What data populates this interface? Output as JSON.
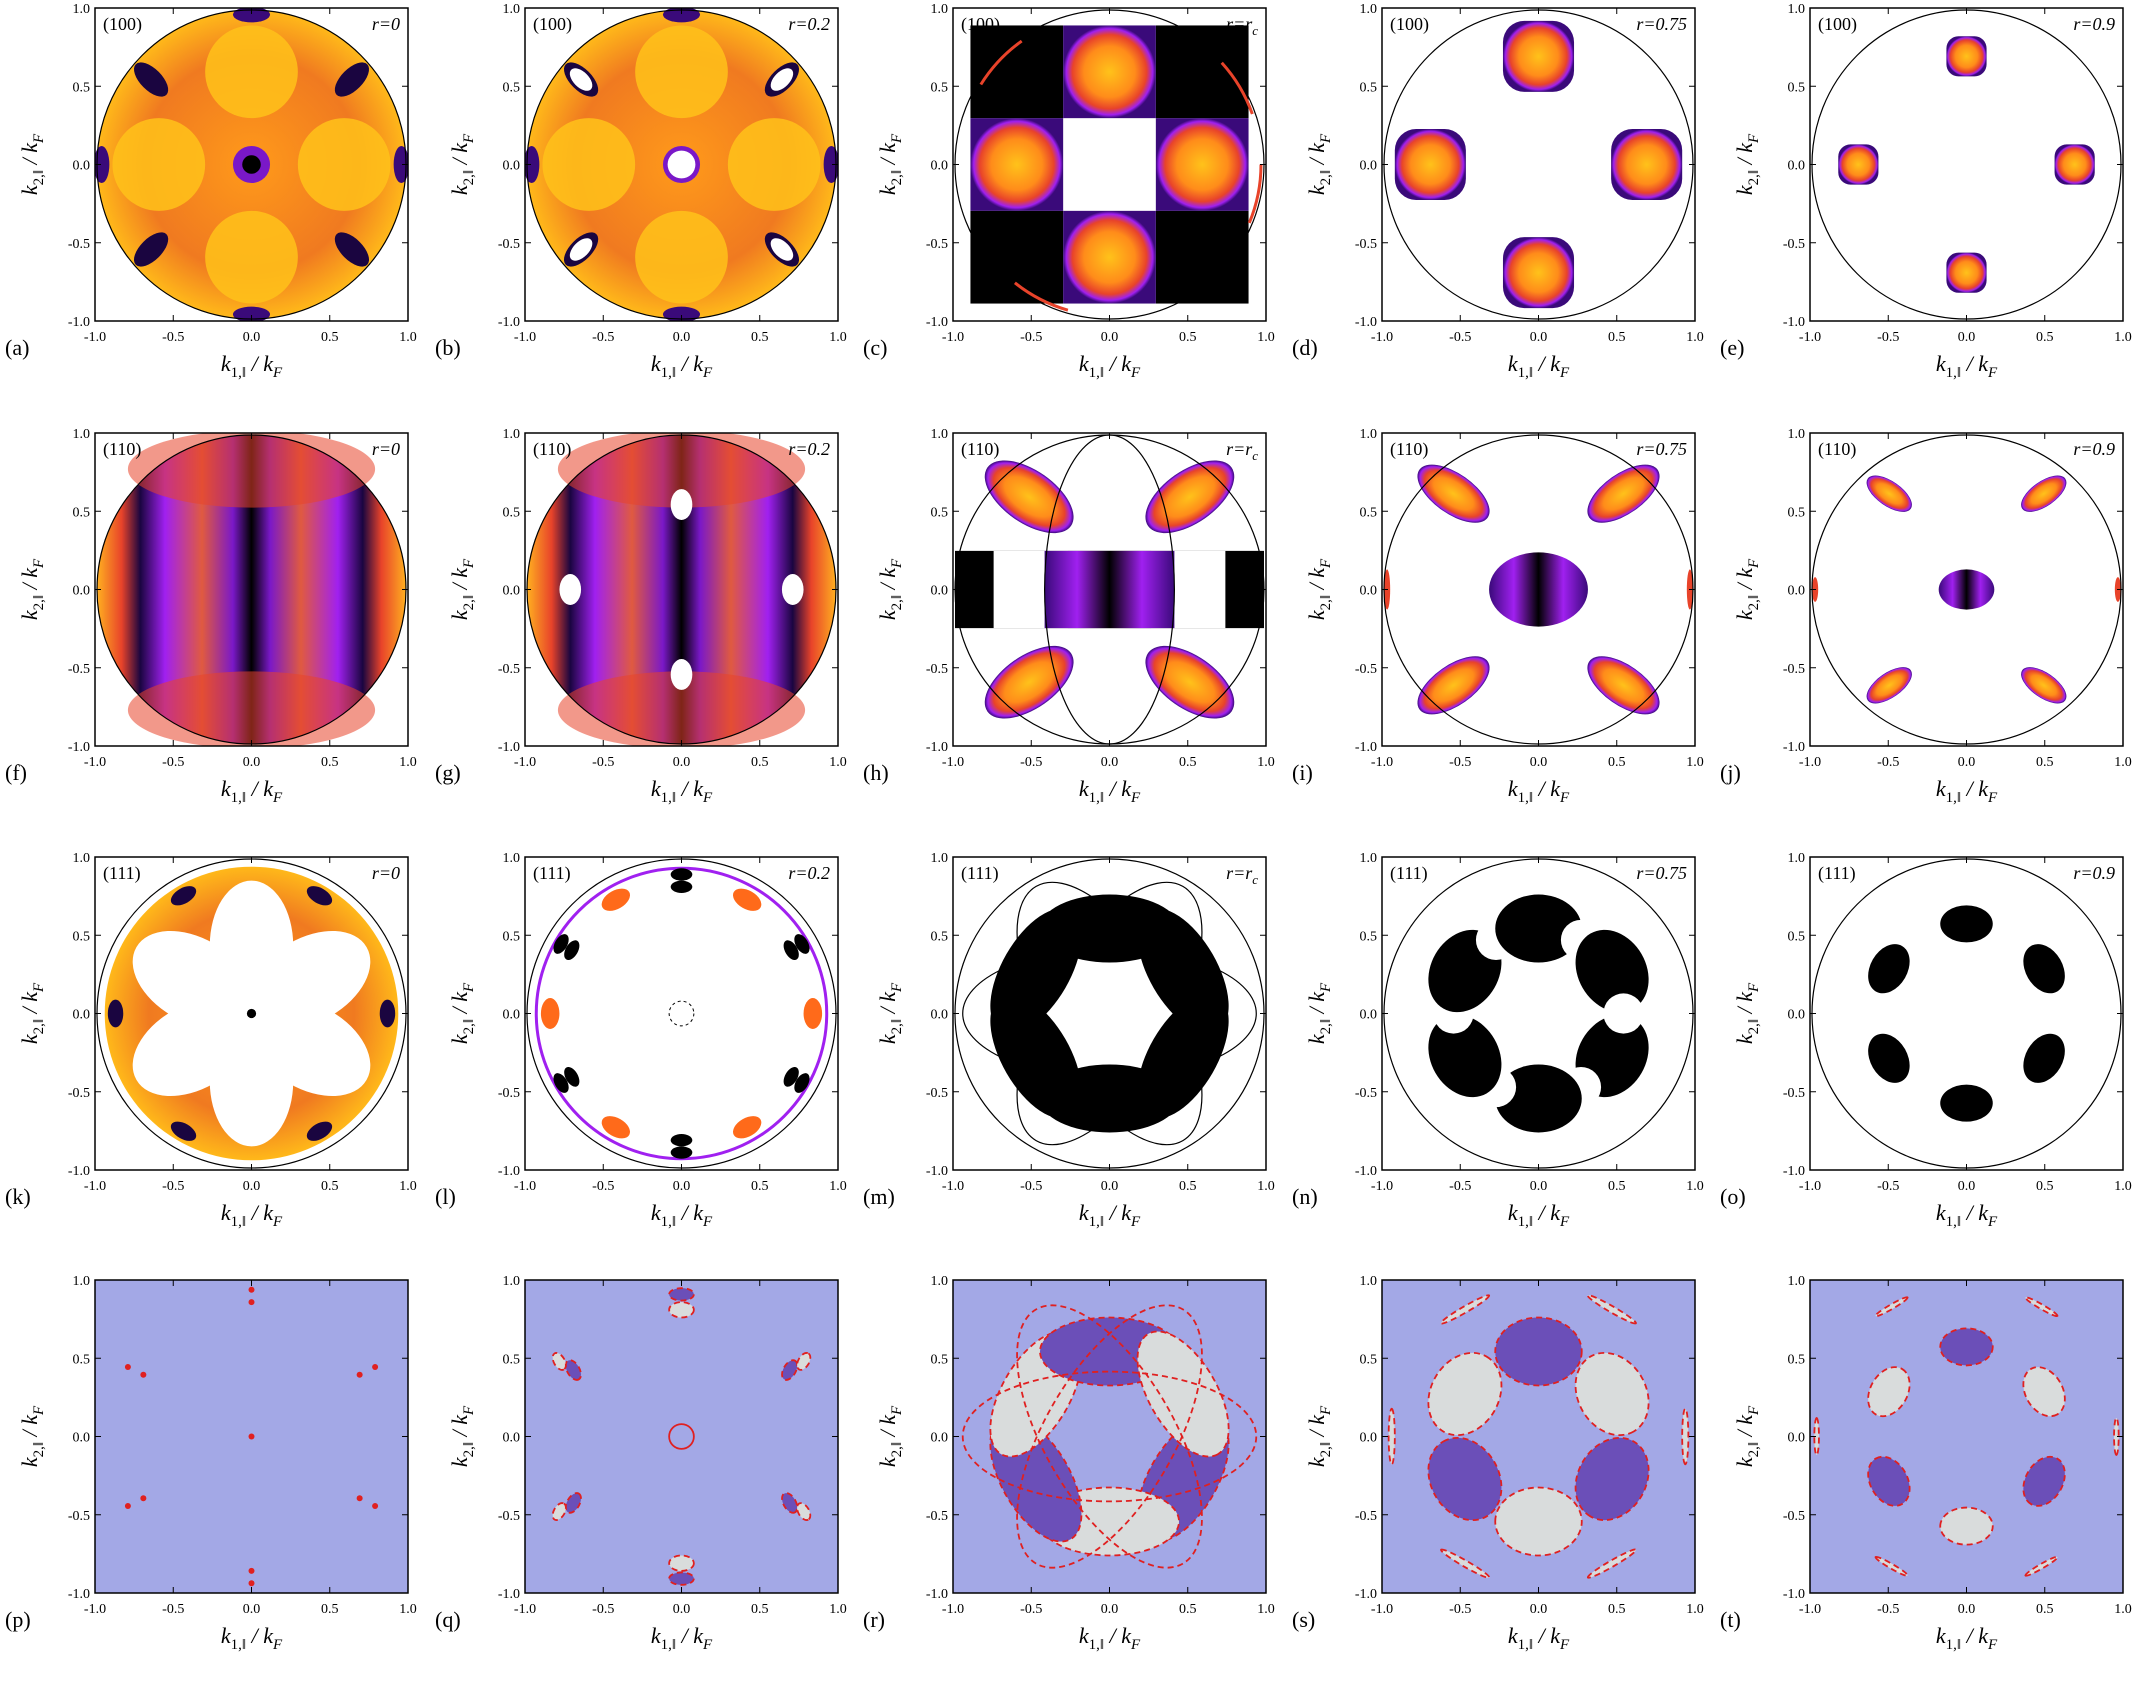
{
  "figure": {
    "colors": {
      "background": "#ffffff",
      "frame": "#000000",
      "nodal": "#000000",
      "fill_white": "#ffffff",
      "bg_lower": "#a3a8e6",
      "fill_dark_lower": "#6b4fb8",
      "fill_light_lower": "#d9dcdc",
      "boundary_dashed": "#e02020",
      "colormap": [
        "#000000",
        "#3a0a7a",
        "#a020f0",
        "#e8432a",
        "#ff8c1a",
        "#ffc21a"
      ]
    },
    "axis_ticks": [
      "-1.0",
      "-0.5",
      "0.0",
      "0.5",
      "1.0"
    ],
    "xlabel_main": "k",
    "xlabel_sub": "1,‖",
    "xlabel_den": " / k",
    "xlabel_den_sub": "F",
    "ylabel_main": "k",
    "ylabel_sub": "2,‖",
    "ylabel_den": " / k",
    "ylabel_den_sub": "F",
    "row_labels": [
      "(100)",
      "(110)",
      "(111)",
      ""
    ],
    "r_labels": [
      "r=0",
      "r=0.2",
      "r=r",
      "r=0.75",
      "r=0.9"
    ],
    "r_label_subscript": [
      "",
      "",
      "c",
      "",
      ""
    ],
    "panel_letters": [
      [
        "(a)",
        "(b)",
        "(c)",
        "(d)",
        "(e)"
      ],
      [
        "(f)",
        "(g)",
        "(h)",
        "(i)",
        "(j)"
      ],
      [
        "(k)",
        "(l)",
        "(m)",
        "(n)",
        "(o)"
      ],
      [
        "(p)",
        "(q)",
        "(r)",
        "(s)",
        "(t)"
      ]
    ]
  }
}
